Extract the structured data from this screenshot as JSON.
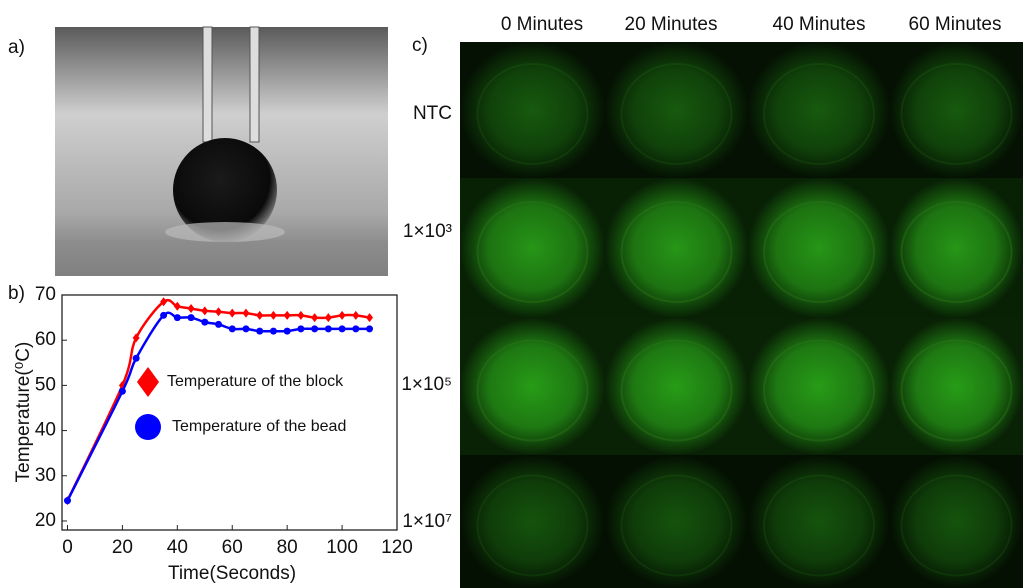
{
  "panels": {
    "a": "a)",
    "b": "b)",
    "c": "c)"
  },
  "grid": {
    "columns": [
      "0 Minutes",
      "20 Minutes",
      "40 Minutes",
      "60 Minutes"
    ],
    "rows": [
      "NTC",
      "1×10³",
      "1×10⁵",
      "1×10⁷"
    ]
  },
  "chart_data": {
    "type": "line",
    "x_label": "Time(Seconds)",
    "y_label": "Temperature(⁰C)",
    "x": [
      0,
      20,
      25,
      35,
      40,
      45,
      50,
      55,
      60,
      65,
      70,
      75,
      80,
      85,
      90,
      95,
      100,
      105,
      110
    ],
    "series": [
      {
        "name": "Temperature of the block",
        "color": "#ff0000",
        "marker": "diamond",
        "values": [
          24.5,
          50,
          60.5,
          68.5,
          67.5,
          67,
          66.5,
          66.3,
          66,
          66,
          65.5,
          65.5,
          65.5,
          65.5,
          65,
          65,
          65.5,
          65.5,
          65
        ]
      },
      {
        "name": "Temperature of the bead",
        "color": "#0000ff",
        "marker": "circle",
        "values": [
          24.5,
          48.7,
          56,
          65.5,
          65,
          65,
          64,
          63.5,
          62.5,
          62.5,
          62,
          62,
          62,
          62.5,
          62.5,
          62.5,
          62.5,
          62.5,
          62.5
        ]
      }
    ],
    "xlim": [
      -2,
      120
    ],
    "xticks": [
      0,
      20,
      40,
      60,
      80,
      100,
      120
    ],
    "ylim": [
      18,
      70
    ],
    "yticks": [
      20,
      30,
      40,
      50,
      60,
      70
    ],
    "grid": false
  }
}
